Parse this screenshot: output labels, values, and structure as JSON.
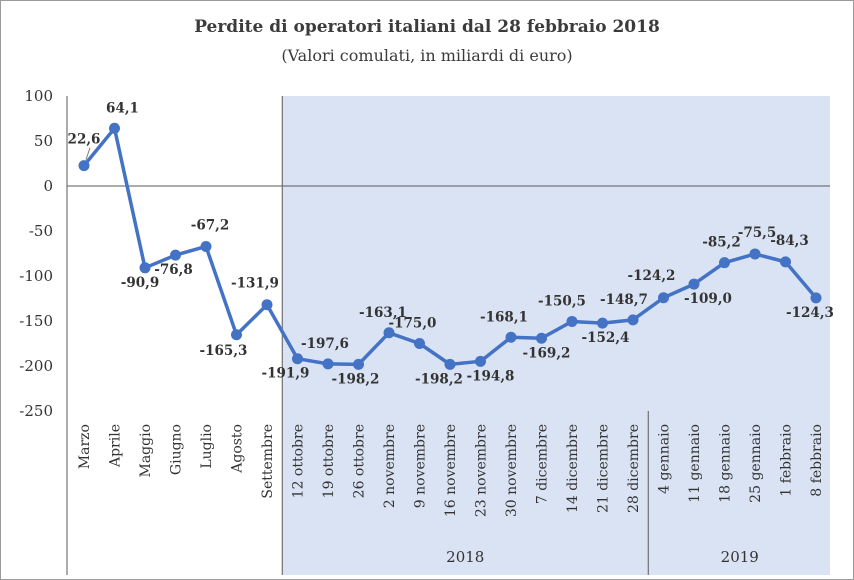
{
  "chart_data": {
    "type": "line",
    "title": "Perdite di operatori italiani dal 28 febbraio 2018",
    "subtitle": "(Valori comulati, in miliardi di euro)",
    "xlabel": "",
    "ylabel": "",
    "ylim": [
      -250,
      100
    ],
    "yticks": [
      100,
      50,
      0,
      -50,
      -100,
      -150,
      -200,
      -250
    ],
    "ytick_labels": [
      "100",
      "50",
      "0",
      "-50",
      "-100",
      "-150",
      "-200",
      "-250"
    ],
    "grid": false,
    "legend": "none",
    "categories": [
      "Marzo",
      "Aprile",
      "Maggio",
      "Giugno",
      "Luglio",
      "Agosto",
      "Settembre",
      "12 ottobre",
      "19 ottobre",
      "26 ottobre",
      "2 novembre",
      "9 novembre",
      "16 novembre",
      "23 novembre",
      "30 novembre",
      "7 dicembre",
      "14 dicembre",
      "21 dicembre",
      "28 dicembre",
      "4 gennaio",
      "11 gennaio",
      "18 gennaio",
      "25 gennaio",
      "1 febbraio",
      "8 febbraio"
    ],
    "values": [
      22.6,
      64.1,
      -90.9,
      -76.8,
      -67.2,
      -165.3,
      -131.9,
      -191.9,
      -197.6,
      -198.2,
      -163.1,
      -175.0,
      -198.2,
      -194.8,
      -168.1,
      -169.2,
      -150.5,
      -152.4,
      -148.7,
      -124.2,
      -109.0,
      -85.2,
      -75.5,
      -84.3,
      -124.3
    ],
    "data_labels": [
      "22,6",
      "64,1",
      "-90,9",
      "-76,8",
      "-67,2",
      "-165,3",
      "-131,9",
      "-191,9",
      "-197,6",
      "-198,2",
      "-163,1",
      "-175,0",
      "-198,2",
      "-194,8",
      "-168,1",
      "-169,2",
      "-150,5",
      "-152,4",
      "-148,7",
      "-124,2",
      "-109,0",
      "-85,2",
      "-75,5",
      "-84,3",
      "-124,3"
    ],
    "year_groups": [
      {
        "label": "2018",
        "start": 7,
        "end": 18
      },
      {
        "label": "2019",
        "start": 19,
        "end": 24
      }
    ],
    "shaded_from_index": 7,
    "colors": {
      "line": "#4472C4",
      "shade": "#DAE3F3",
      "axis": "#595959"
    }
  }
}
